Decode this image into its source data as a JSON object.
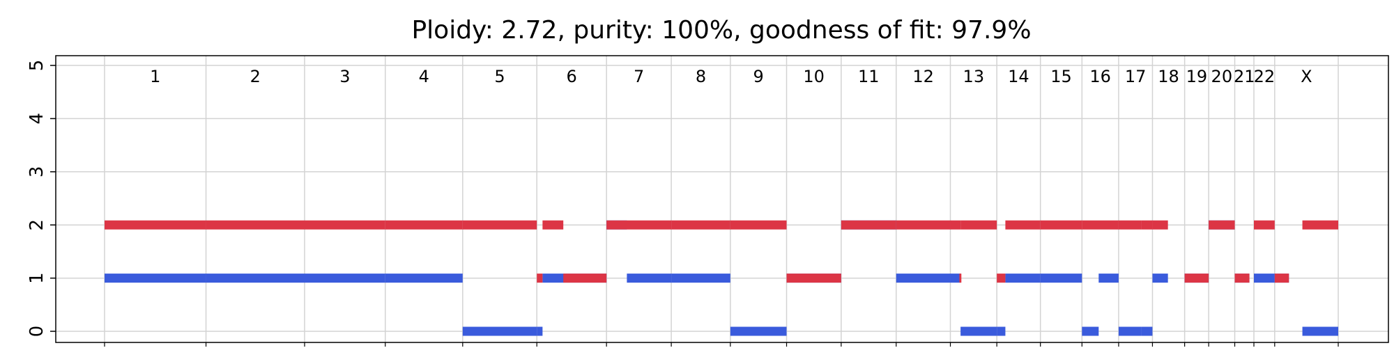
{
  "chart_data": {
    "type": "bar",
    "title": "Ploidy: 2.72, purity: 100%, goodness of fit: 97.9%",
    "xlabel": "",
    "ylabel": "",
    "ylim": [
      0,
      5
    ],
    "yticks": [
      "0",
      "1",
      "2",
      "3",
      "4",
      "5"
    ],
    "grid": true,
    "colors": {
      "major": "#3a5bdc",
      "minor": "#dc3545",
      "grid": "#d3d3d3"
    },
    "chromosomes": [
      {
        "name": "1",
        "start": 0,
        "end": 249
      },
      {
        "name": "2",
        "start": 249,
        "end": 491
      },
      {
        "name": "3",
        "start": 491,
        "end": 689
      },
      {
        "name": "4",
        "start": 689,
        "end": 879
      },
      {
        "name": "5",
        "start": 879,
        "end": 1061
      },
      {
        "name": "6",
        "start": 1061,
        "end": 1232
      },
      {
        "name": "7",
        "start": 1232,
        "end": 1391
      },
      {
        "name": "8",
        "start": 1391,
        "end": 1536
      },
      {
        "name": "9",
        "start": 1536,
        "end": 1674
      },
      {
        "name": "10",
        "start": 1674,
        "end": 1808
      },
      {
        "name": "11",
        "start": 1808,
        "end": 1943
      },
      {
        "name": "12",
        "start": 1943,
        "end": 2076
      },
      {
        "name": "13",
        "start": 2076,
        "end": 2190
      },
      {
        "name": "14",
        "start": 2190,
        "end": 2297
      },
      {
        "name": "15",
        "start": 2297,
        "end": 2399
      },
      {
        "name": "16",
        "start": 2399,
        "end": 2489
      },
      {
        "name": "17",
        "start": 2489,
        "end": 2572
      },
      {
        "name": "18",
        "start": 2572,
        "end": 2651
      },
      {
        "name": "19",
        "start": 2651,
        "end": 2710
      },
      {
        "name": "20",
        "start": 2710,
        "end": 2774
      },
      {
        "name": "21",
        "start": 2774,
        "end": 2821
      },
      {
        "name": "22",
        "start": 2821,
        "end": 2872
      },
      {
        "name": "X",
        "start": 2872,
        "end": 3028
      }
    ],
    "series": [
      {
        "key": "major",
        "segments": [
          {
            "start": 0,
            "end": 249,
            "cn": 1
          },
          {
            "start": 249,
            "end": 491,
            "cn": 1
          },
          {
            "start": 491,
            "end": 689,
            "cn": 1
          },
          {
            "start": 689,
            "end": 879,
            "cn": 1
          },
          {
            "start": 879,
            "end": 1061,
            "cn": 0
          },
          {
            "start": 1061,
            "end": 1075,
            "cn": 0
          },
          {
            "start": 1075,
            "end": 1232,
            "cn": 1
          },
          {
            "start": 1232,
            "end": 1282,
            "cn": 2
          },
          {
            "start": 1282,
            "end": 1391,
            "cn": 1
          },
          {
            "start": 1391,
            "end": 1536,
            "cn": 1
          },
          {
            "start": 1536,
            "end": 1674,
            "cn": 0
          },
          {
            "start": 1674,
            "end": 1808,
            "cn": 1
          },
          {
            "start": 1808,
            "end": 1943,
            "cn": 2
          },
          {
            "start": 1943,
            "end": 2076,
            "cn": 1
          },
          {
            "start": 2076,
            "end": 2101,
            "cn": 1
          },
          {
            "start": 2101,
            "end": 2190,
            "cn": 0
          },
          {
            "start": 2190,
            "end": 2211,
            "cn": 0
          },
          {
            "start": 2211,
            "end": 2297,
            "cn": 1
          },
          {
            "start": 2297,
            "end": 2399,
            "cn": 1
          },
          {
            "start": 2399,
            "end": 2440,
            "cn": 0
          },
          {
            "start": 2440,
            "end": 2489,
            "cn": 1
          },
          {
            "start": 2489,
            "end": 2544,
            "cn": 0
          },
          {
            "start": 2544,
            "end": 2572,
            "cn": 0
          },
          {
            "start": 2572,
            "end": 2610,
            "cn": 1
          },
          {
            "start": 2651,
            "end": 2710,
            "cn": 1
          },
          {
            "start": 2710,
            "end": 2774,
            "cn": 2
          },
          {
            "start": 2774,
            "end": 2810,
            "cn": 1
          },
          {
            "start": 2821,
            "end": 2872,
            "cn": 1
          },
          {
            "start": 2872,
            "end": 2907,
            "cn": 1
          },
          {
            "start": 2940,
            "end": 3028,
            "cn": 0
          }
        ]
      },
      {
        "key": "minor",
        "segments": [
          {
            "start": 0,
            "end": 249,
            "cn": 2
          },
          {
            "start": 249,
            "end": 491,
            "cn": 2
          },
          {
            "start": 491,
            "end": 689,
            "cn": 2
          },
          {
            "start": 689,
            "end": 879,
            "cn": 2
          },
          {
            "start": 879,
            "end": 1061,
            "cn": 2
          },
          {
            "start": 1061,
            "end": 1075,
            "cn": 1
          },
          {
            "start": 1075,
            "end": 1126,
            "cn": 2
          },
          {
            "start": 1126,
            "end": 1232,
            "cn": 1
          },
          {
            "start": 1232,
            "end": 1391,
            "cn": 2
          },
          {
            "start": 1391,
            "end": 1536,
            "cn": 2
          },
          {
            "start": 1536,
            "end": 1674,
            "cn": 2
          },
          {
            "start": 1674,
            "end": 1808,
            "cn": 1
          },
          {
            "start": 1808,
            "end": 1943,
            "cn": 2
          },
          {
            "start": 1943,
            "end": 2076,
            "cn": 2
          },
          {
            "start": 2076,
            "end": 2101,
            "cn": 2
          },
          {
            "start": 2098,
            "end": 2103,
            "cn": 1
          },
          {
            "start": 2101,
            "end": 2190,
            "cn": 2
          },
          {
            "start": 2190,
            "end": 2211,
            "cn": 1
          },
          {
            "start": 2211,
            "end": 2297,
            "cn": 2
          },
          {
            "start": 2297,
            "end": 2399,
            "cn": 2
          },
          {
            "start": 2399,
            "end": 2489,
            "cn": 2
          },
          {
            "start": 2489,
            "end": 2544,
            "cn": 2
          },
          {
            "start": 2544,
            "end": 2572,
            "cn": 2
          },
          {
            "start": 2572,
            "end": 2610,
            "cn": 2
          },
          {
            "start": 2651,
            "end": 2710,
            "cn": 1
          },
          {
            "start": 2710,
            "end": 2774,
            "cn": 2
          },
          {
            "start": 2774,
            "end": 2810,
            "cn": 1
          },
          {
            "start": 2821,
            "end": 2872,
            "cn": 2
          },
          {
            "start": 2872,
            "end": 2907,
            "cn": 1
          },
          {
            "start": 2940,
            "end": 3028,
            "cn": 2
          }
        ]
      }
    ]
  }
}
